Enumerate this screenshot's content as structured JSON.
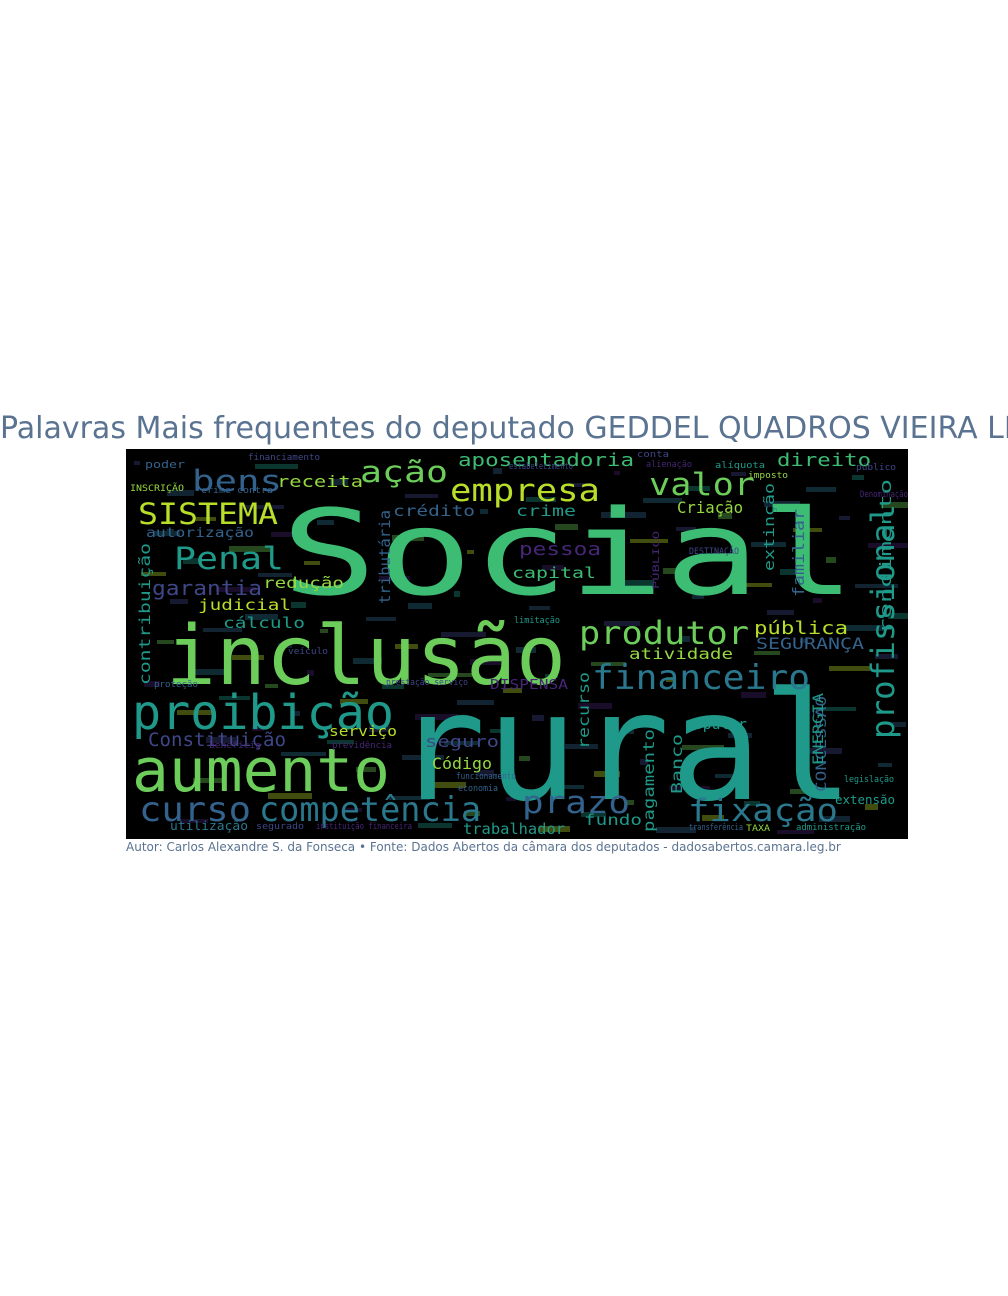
{
  "figure": {
    "title": "Palavras Mais frequentes do deputado GEDDEL QUADROS VIEIRA LIMA",
    "caption": "Autor: Carlos Alexandre S. da Fonseca • Fonte: Dados Abertos da câmara dos deputados - dadosabertos.camara.leg.br"
  },
  "wordcloud": {
    "background": "#000000",
    "colors": {
      "green": "#3dbc74",
      "light-green": "#6ccd5a",
      "teal": "#1f9a8a",
      "blue-teal": "#2a788e",
      "blue": "#33638d",
      "indigo": "#3f4788",
      "purple": "#482677",
      "yellow": "#b8de29",
      "yellow-green": "#95d840"
    },
    "words": [
      {
        "text": "Social",
        "color": "green"
      },
      {
        "text": "rural",
        "color": "teal"
      },
      {
        "text": "inclusão",
        "color": "light-green"
      },
      {
        "text": "aumento",
        "color": "light-green"
      },
      {
        "text": "proibição",
        "color": "teal"
      },
      {
        "text": "competência",
        "color": "blue-teal"
      },
      {
        "text": "curso",
        "color": "blue"
      },
      {
        "text": "profissional",
        "color": "teal"
      },
      {
        "text": "financeiro",
        "color": "blue-teal"
      },
      {
        "text": "produtor",
        "color": "light-green"
      },
      {
        "text": "empresa",
        "color": "yellow"
      },
      {
        "text": "valor",
        "color": "light-green"
      },
      {
        "text": "prazo",
        "color": "blue"
      },
      {
        "text": "fixação",
        "color": "blue-teal"
      },
      {
        "text": "Penal",
        "color": "teal"
      },
      {
        "text": "SISTEMA",
        "color": "yellow"
      },
      {
        "text": "bens",
        "color": "blue"
      },
      {
        "text": "ação",
        "color": "light-green"
      },
      {
        "text": "aposentadoria",
        "color": "green"
      },
      {
        "text": "direito",
        "color": "green"
      },
      {
        "text": "garantia",
        "color": "indigo"
      },
      {
        "text": "Constituição",
        "color": "indigo"
      },
      {
        "text": "pública",
        "color": "yellow"
      },
      {
        "text": "SEGURANÇA",
        "color": "blue"
      },
      {
        "text": "atividade",
        "color": "yellow-green"
      },
      {
        "text": "Código",
        "color": "yellow-green"
      },
      {
        "text": "seguro",
        "color": "indigo"
      },
      {
        "text": "serviço",
        "color": "yellow"
      },
      {
        "text": "trabalhador",
        "color": "teal"
      },
      {
        "text": "fundo",
        "color": "teal"
      },
      {
        "text": "pagamento",
        "color": "teal"
      },
      {
        "text": "Banco",
        "color": "teal"
      },
      {
        "text": "recurso",
        "color": "teal"
      },
      {
        "text": "extensão",
        "color": "teal"
      },
      {
        "text": "CONCESSÃO",
        "color": "blue"
      },
      {
        "text": "ENERGIA",
        "color": "teal"
      },
      {
        "text": "popular",
        "color": "teal"
      },
      {
        "text": "rendimento",
        "color": "teal"
      },
      {
        "text": "familiar",
        "color": "blue"
      },
      {
        "text": "extinção",
        "color": "teal"
      },
      {
        "text": "Criação",
        "color": "yellow-green"
      },
      {
        "text": "crime",
        "color": "teal"
      },
      {
        "text": "crédito",
        "color": "blue"
      },
      {
        "text": "receita",
        "color": "yellow-green"
      },
      {
        "text": "tributária",
        "color": "blue"
      },
      {
        "text": "pessoa",
        "color": "purple"
      },
      {
        "text": "capital",
        "color": "green"
      },
      {
        "text": "redução",
        "color": "yellow-green"
      },
      {
        "text": "judicial",
        "color": "yellow"
      },
      {
        "text": "cálculo",
        "color": "teal"
      },
      {
        "text": "contribuição",
        "color": "teal"
      },
      {
        "text": "autorização",
        "color": "blue"
      },
      {
        "text": "utilização",
        "color": "blue-teal"
      },
      {
        "text": "DISPENSA",
        "color": "purple"
      },
      {
        "text": "poder",
        "color": "blue"
      },
      {
        "text": "INSCRIÇÃO",
        "color": "yellow-green"
      },
      {
        "text": "financiamento",
        "color": "indigo"
      },
      {
        "text": "imposto",
        "color": "yellow-green"
      },
      {
        "text": "alíquota",
        "color": "teal"
      },
      {
        "text": "crime contra",
        "color": "blue"
      },
      {
        "text": "administração",
        "color": "teal"
      },
      {
        "text": "legislação",
        "color": "teal"
      },
      {
        "text": "TAXA",
        "color": "yellow-green"
      },
      {
        "text": "transferência",
        "color": "blue"
      },
      {
        "text": "economia",
        "color": "blue"
      },
      {
        "text": "funcionamento",
        "color": "blue"
      },
      {
        "text": "previdência",
        "color": "purple"
      },
      {
        "text": "benefício",
        "color": "purple"
      },
      {
        "text": "prestação serviço",
        "color": "indigo"
      },
      {
        "text": "instituição financeira",
        "color": "purple"
      },
      {
        "text": "segurado",
        "color": "indigo"
      },
      {
        "text": "proteção",
        "color": "blue"
      },
      {
        "text": "veículo",
        "color": "indigo"
      },
      {
        "text": "DESTINAÇÃO",
        "color": "indigo"
      },
      {
        "text": "PÚBLICO",
        "color": "purple"
      },
      {
        "text": "limitação",
        "color": "teal"
      },
      {
        "text": "público",
        "color": "indigo"
      },
      {
        "text": "Denominação",
        "color": "purple"
      },
      {
        "text": "alienação",
        "color": "purple"
      },
      {
        "text": "estabelecimento",
        "color": "indigo"
      },
      {
        "text": "conta",
        "color": "indigo"
      }
    ]
  }
}
